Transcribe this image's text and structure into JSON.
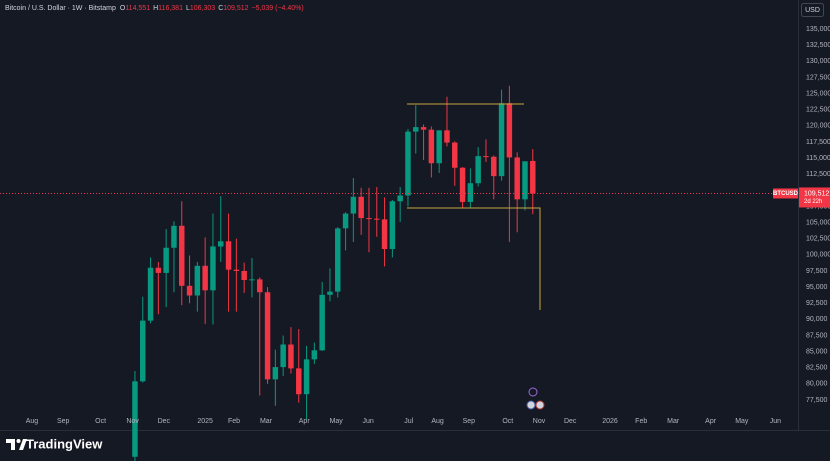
{
  "chart_data": {
    "type": "candlestick",
    "title": "Bitcoin / U.S. Dollar · 1W · Bitstamp",
    "ohlc": [
      {
        "label": "O",
        "value": "114,551"
      },
      {
        "label": "H",
        "value": "116,381"
      },
      {
        "label": "L",
        "value": "106,303"
      },
      {
        "label": "C",
        "value": "109,512"
      }
    ],
    "change": "−5,039 (−4.40%)",
    "currency": "USD",
    "symbol": "BTCUSD",
    "last_price_label": "109,512",
    "countdown": "2d 22h",
    "brand": "TradingView",
    "up_color": "#089981",
    "down_color": "#f23645",
    "grid": false,
    "open": [
      68700,
      80400,
      89800,
      98000,
      97200,
      101100,
      104500,
      95200,
      93700,
      98300,
      94500,
      101300,
      102100,
      97700,
      97500,
      96100,
      96200,
      94200,
      80700,
      82600,
      86100,
      82400,
      78400,
      83800,
      85200,
      93800,
      94300,
      104100,
      106400,
      109000,
      105700,
      105600,
      105500,
      100900,
      108300,
      109200,
      119100,
      119800,
      119400,
      114200,
      119300,
      117400,
      113500,
      108200,
      111100,
      115300,
      115200,
      112200,
      123500,
      115100,
      108600,
      114551
    ],
    "high": [
      82000,
      93500,
      99600,
      98900,
      104000,
      105200,
      108300,
      99900,
      98900,
      102700,
      106400,
      109100,
      106400,
      102500,
      98800,
      99500,
      96500,
      95000,
      85300,
      87500,
      88800,
      88500,
      85900,
      86400,
      95800,
      97900,
      104300,
      106600,
      111900,
      110400,
      110400,
      110500,
      108900,
      108500,
      110500,
      119500,
      123200,
      120200,
      119900,
      119300,
      124500,
      117600,
      113600,
      113400,
      116700,
      117900,
      115400,
      125600,
      126200,
      115900,
      114000,
      116381
    ],
    "low": [
      66800,
      80200,
      89400,
      90800,
      91900,
      94200,
      92200,
      92500,
      91200,
      89300,
      89200,
      98900,
      91200,
      91200,
      94100,
      93400,
      78200,
      80000,
      76600,
      81200,
      81600,
      77100,
      74500,
      83100,
      85100,
      92800,
      93400,
      100700,
      102000,
      103100,
      100400,
      102800,
      98200,
      99600,
      105100,
      107500,
      115700,
      114700,
      112000,
      112700,
      116800,
      110700,
      107300,
      107300,
      110600,
      114400,
      108600,
      111500,
      102000,
      103500,
      106900,
      106303
    ],
    "close": [
      80400,
      89800,
      98000,
      97200,
      101100,
      104500,
      95200,
      93700,
      98300,
      94500,
      101300,
      102100,
      97700,
      97500,
      96100,
      96200,
      94200,
      80700,
      82600,
      86100,
      82400,
      78400,
      83800,
      85200,
      93800,
      94300,
      104100,
      106400,
      109000,
      105700,
      105600,
      105500,
      100900,
      108300,
      109200,
      119100,
      119800,
      119400,
      114200,
      119300,
      117400,
      113500,
      108200,
      111100,
      115300,
      115200,
      112200,
      123500,
      115100,
      108600,
      114500,
      109512
    ],
    "xlim": [
      -17.3,
      85
    ],
    "xticks": [
      {
        "value": -13.2,
        "label": "Aug"
      },
      {
        "value": -9.2,
        "label": "Sep"
      },
      {
        "value": -4.4,
        "label": "Oct"
      },
      {
        "value": -0.3,
        "label": "Nov"
      },
      {
        "value": 3.7,
        "label": "Dec"
      },
      {
        "value": 9.0,
        "label": "2025"
      },
      {
        "value": 12.7,
        "label": "Feb"
      },
      {
        "value": 16.8,
        "label": "Mar"
      },
      {
        "value": 21.7,
        "label": "Apr"
      },
      {
        "value": 25.8,
        "label": "May"
      },
      {
        "value": 29.9,
        "label": "Jun"
      },
      {
        "value": 35.1,
        "label": "Jul"
      },
      {
        "value": 38.8,
        "label": "Aug"
      },
      {
        "value": 42.8,
        "label": "Sep"
      },
      {
        "value": 47.8,
        "label": "Oct"
      },
      {
        "value": 51.8,
        "label": "Nov"
      },
      {
        "value": 55.8,
        "label": "Dec"
      },
      {
        "value": 60.9,
        "label": "2026"
      },
      {
        "value": 64.9,
        "label": "Feb"
      },
      {
        "value": 69.0,
        "label": "Mar"
      },
      {
        "value": 73.8,
        "label": "Apr"
      },
      {
        "value": 77.8,
        "label": "May"
      },
      {
        "value": 82.1,
        "label": "Jun"
      }
    ],
    "ylim": [
      75640,
      139500
    ],
    "yticks": [
      {
        "value": 135000,
        "label": "135,000"
      },
      {
        "value": 132500,
        "label": "132,500"
      },
      {
        "value": 130000,
        "label": "130,000"
      },
      {
        "value": 127500,
        "label": "127,500"
      },
      {
        "value": 125000,
        "label": "125,000"
      },
      {
        "value": 122500,
        "label": "122,500"
      },
      {
        "value": 120000,
        "label": "120,000"
      },
      {
        "value": 117500,
        "label": "117,500"
      },
      {
        "value": 115000,
        "label": "115,000"
      },
      {
        "value": 112500,
        "label": "112,500"
      },
      {
        "value": 107500,
        "label": "107,500"
      },
      {
        "value": 105000,
        "label": "105,000"
      },
      {
        "value": 102500,
        "label": "102,500"
      },
      {
        "value": 100000,
        "label": "100,000"
      },
      {
        "value": 97500,
        "label": "97,500"
      },
      {
        "value": 95000,
        "label": "95,000"
      },
      {
        "value": 92500,
        "label": "92,500"
      },
      {
        "value": 90000,
        "label": "90,000"
      },
      {
        "value": 87500,
        "label": "87,500"
      },
      {
        "value": 85000,
        "label": "85,000"
      },
      {
        "value": 82500,
        "label": "82,500"
      },
      {
        "value": 80000,
        "label": "80,000"
      },
      {
        "value": 77500,
        "label": "77,500"
      }
    ]
  }
}
